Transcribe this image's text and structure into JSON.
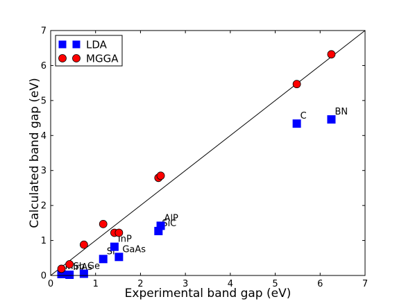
{
  "chart_data": {
    "type": "scatter",
    "xlabel": "Experimental band gap   (eV)",
    "ylabel": "Calculated band gap   (eV)",
    "xlim": [
      0,
      7
    ],
    "ylim": [
      0,
      7
    ],
    "xticks": [
      0,
      1,
      2,
      3,
      4,
      5,
      6,
      7
    ],
    "yticks": [
      0,
      1,
      2,
      3,
      4,
      5,
      6,
      7
    ],
    "grid": false,
    "legend_position": "top-left",
    "reference_line": {
      "x": [
        0,
        7
      ],
      "y": [
        0,
        7
      ],
      "color": "#000000"
    },
    "series": [
      {
        "name": "LDA",
        "marker": "square",
        "color": "#0000ff",
        "points": [
          {
            "x": 0.24,
            "y": 0.04,
            "label": "InSb"
          },
          {
            "x": 0.42,
            "y": 0.02,
            "label": "InAs"
          },
          {
            "x": 0.74,
            "y": 0.05,
            "label": "Ge"
          },
          {
            "x": 1.17,
            "y": 0.47,
            "label": "Si"
          },
          {
            "x": 1.42,
            "y": 0.82,
            "label": "InP"
          },
          {
            "x": 1.52,
            "y": 0.53,
            "label": "GaAs"
          },
          {
            "x": 2.4,
            "y": 1.27,
            "label": "SiC"
          },
          {
            "x": 2.45,
            "y": 1.42,
            "label": "AlP"
          },
          {
            "x": 5.48,
            "y": 4.34,
            "label": "C"
          },
          {
            "x": 6.25,
            "y": 4.46,
            "label": "BN"
          }
        ]
      },
      {
        "name": "MGGA",
        "marker": "circle",
        "color": "#ff0000",
        "points": [
          {
            "x": 0.24,
            "y": 0.19
          },
          {
            "x": 0.42,
            "y": 0.32
          },
          {
            "x": 0.74,
            "y": 0.88
          },
          {
            "x": 1.17,
            "y": 1.47
          },
          {
            "x": 1.42,
            "y": 1.22
          },
          {
            "x": 1.52,
            "y": 1.22
          },
          {
            "x": 2.4,
            "y": 2.79
          },
          {
            "x": 2.45,
            "y": 2.85
          },
          {
            "x": 5.48,
            "y": 5.47
          },
          {
            "x": 6.25,
            "y": 6.32
          }
        ]
      }
    ]
  }
}
